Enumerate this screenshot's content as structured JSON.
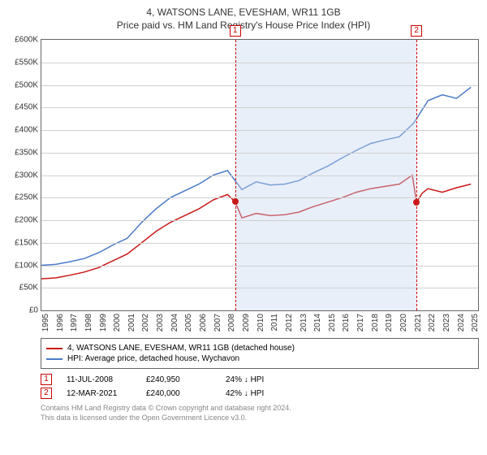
{
  "title": "4, WATSONS LANE, EVESHAM, WR11 1GB",
  "subtitle": "Price paid vs. HM Land Registry's House Price Index (HPI)",
  "chart": {
    "type": "line",
    "background_color": "#ffffff",
    "grid_color": "#d0d0d0",
    "border_color": "#666666",
    "shaded_color": "rgba(200,215,240,0.4)",
    "shaded_xrange": [
      2008.53,
      2021.2
    ],
    "xlim": [
      1995,
      2025.5
    ],
    "ylim": [
      0,
      600000
    ],
    "ytick_step": 50000,
    "yticklabels": [
      "£0",
      "£50K",
      "£100K",
      "£150K",
      "£200K",
      "£250K",
      "£300K",
      "£350K",
      "£400K",
      "£450K",
      "£500K",
      "£550K",
      "£600K"
    ],
    "xticks": [
      1995,
      1996,
      1997,
      1998,
      1999,
      2000,
      2001,
      2002,
      2003,
      2004,
      2005,
      2006,
      2007,
      2008,
      2009,
      2010,
      2011,
      2012,
      2013,
      2014,
      2015,
      2016,
      2017,
      2018,
      2019,
      2020,
      2021,
      2022,
      2023,
      2024,
      2025
    ],
    "tick_fontsize": 10,
    "series": [
      {
        "name": "prop",
        "label": "4, WATSONS LANE, EVESHAM, WR11 1GB (detached house)",
        "color": "#c91818",
        "line_width": 1.5,
        "points": [
          [
            1995,
            70000
          ],
          [
            1996,
            72000
          ],
          [
            1997,
            78000
          ],
          [
            1998,
            85000
          ],
          [
            1999,
            95000
          ],
          [
            2000,
            110000
          ],
          [
            2001,
            125000
          ],
          [
            2002,
            150000
          ],
          [
            2003,
            175000
          ],
          [
            2004,
            195000
          ],
          [
            2005,
            210000
          ],
          [
            2006,
            225000
          ],
          [
            2007,
            245000
          ],
          [
            2008,
            257000
          ],
          [
            2008.53,
            240950
          ],
          [
            2009,
            205000
          ],
          [
            2010,
            215000
          ],
          [
            2011,
            210000
          ],
          [
            2012,
            212000
          ],
          [
            2013,
            218000
          ],
          [
            2014,
            230000
          ],
          [
            2015,
            240000
          ],
          [
            2016,
            250000
          ],
          [
            2017,
            262000
          ],
          [
            2018,
            270000
          ],
          [
            2019,
            275000
          ],
          [
            2020,
            280000
          ],
          [
            2020.9,
            300000
          ],
          [
            2021.2,
            240000
          ],
          [
            2021.6,
            260000
          ],
          [
            2022,
            270000
          ],
          [
            2023,
            262000
          ],
          [
            2024,
            272000
          ],
          [
            2025,
            280000
          ]
        ]
      },
      {
        "name": "hpi",
        "label": "HPI: Average price, detached house, Wychavon",
        "color": "#4a7bc8",
        "line_width": 1.5,
        "points": [
          [
            1995,
            100000
          ],
          [
            1996,
            102000
          ],
          [
            1997,
            108000
          ],
          [
            1998,
            115000
          ],
          [
            1999,
            128000
          ],
          [
            2000,
            145000
          ],
          [
            2001,
            160000
          ],
          [
            2002,
            195000
          ],
          [
            2003,
            225000
          ],
          [
            2004,
            250000
          ],
          [
            2005,
            265000
          ],
          [
            2006,
            280000
          ],
          [
            2007,
            300000
          ],
          [
            2008,
            310000
          ],
          [
            2009,
            268000
          ],
          [
            2010,
            285000
          ],
          [
            2011,
            278000
          ],
          [
            2012,
            280000
          ],
          [
            2013,
            288000
          ],
          [
            2014,
            305000
          ],
          [
            2015,
            320000
          ],
          [
            2016,
            338000
          ],
          [
            2017,
            355000
          ],
          [
            2018,
            370000
          ],
          [
            2019,
            378000
          ],
          [
            2020,
            385000
          ],
          [
            2021,
            415000
          ],
          [
            2022,
            465000
          ],
          [
            2023,
            478000
          ],
          [
            2024,
            470000
          ],
          [
            2025,
            495000
          ]
        ]
      }
    ],
    "markers": [
      {
        "num": "1",
        "x": 2008.53,
        "y": 240950,
        "box_top": true
      },
      {
        "num": "2",
        "x": 2021.2,
        "y": 240000,
        "box_top": true
      }
    ],
    "marker_line_color": "#c91818",
    "marker_box_border": "#c91818",
    "marker_dot_color": "#c91818"
  },
  "legend": {
    "items": [
      {
        "label": "4, WATSONS LANE, EVESHAM, WR11 1GB (detached house)",
        "color": "#c91818"
      },
      {
        "label": "HPI: Average price, detached house, Wychavon",
        "color": "#4a7bc8"
      }
    ]
  },
  "sales": [
    {
      "num": "1",
      "date": "11-JUL-2008",
      "price": "£240,950",
      "delta": "24% ↓ HPI"
    },
    {
      "num": "2",
      "date": "12-MAR-2021",
      "price": "£240,000",
      "delta": "42% ↓ HPI"
    }
  ],
  "footer_line1": "Contains HM Land Registry data © Crown copyright and database right 2024.",
  "footer_line2": "This data is licensed under the Open Government Licence v3.0."
}
